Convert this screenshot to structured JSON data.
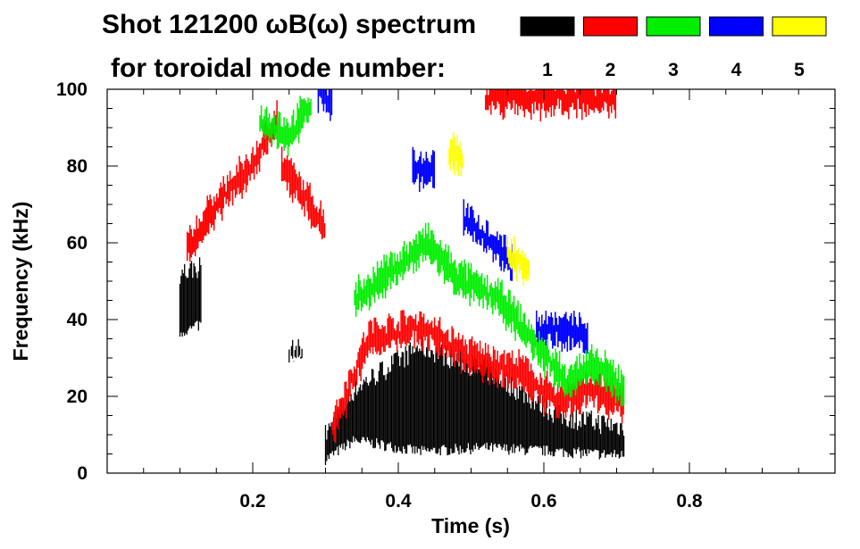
{
  "chart_data": {
    "type": "heatmap",
    "title": "Shot 121200 ωB(ω) spectrum",
    "subtitle": "for toroidal mode number:",
    "xlabel": "Time (s)",
    "ylabel": "Frequency (kHz)",
    "xlim": [
      0.0,
      1.0
    ],
    "ylim": [
      0,
      100
    ],
    "x_ticks": [
      "0.2",
      "0.4",
      "0.6",
      "0.8"
    ],
    "x_tick_values": [
      0.2,
      0.4,
      0.6,
      0.8
    ],
    "y_ticks": [
      "0",
      "20",
      "40",
      "60",
      "80",
      "100"
    ],
    "y_tick_values": [
      0,
      20,
      40,
      60,
      80,
      100
    ],
    "legend": [
      {
        "label": "1",
        "color": "#000000"
      },
      {
        "label": "2",
        "color": "#ff0000"
      },
      {
        "label": "3",
        "color": "#00ee00"
      },
      {
        "label": "4",
        "color": "#0000ff"
      },
      {
        "label": "5",
        "color": "#ffff00"
      }
    ],
    "series": [
      {
        "name": "n=1",
        "color": "#000000",
        "bands": [
          {
            "t": [
              0.3,
              0.71
            ],
            "f_low": [
              3,
              8,
              5,
              6,
              5,
              4
            ],
            "f_high": [
              10,
              22,
              33,
              27,
              15,
              12
            ],
            "t_nodes": [
              0.3,
              0.34,
              0.43,
              0.52,
              0.62,
              0.71
            ]
          },
          {
            "t": [
              0.1,
              0.13
            ],
            "f_low": [
              36,
              38
            ],
            "f_high": [
              52,
              54
            ],
            "t_nodes": [
              0.1,
              0.13
            ]
          },
          {
            "t": [
              0.25,
              0.27
            ],
            "f_low": [
              29,
              29
            ],
            "f_high": [
              32,
              32
            ],
            "t_nodes": [
              0.25,
              0.27
            ]
          }
        ]
      },
      {
        "name": "n=2",
        "color": "#ff0000",
        "traces": [
          {
            "t": [
              0.11,
              0.15,
              0.2,
              0.235
            ],
            "f": [
              58,
              70,
              80,
              93
            ]
          },
          {
            "t": [
              0.24,
              0.27,
              0.3
            ],
            "f": [
              80,
              72,
              64
            ]
          },
          {
            "t": [
              0.31,
              0.36,
              0.43,
              0.5,
              0.57,
              0.62,
              0.66,
              0.71
            ],
            "f": [
              12,
              35,
              38,
              30,
              26,
              18,
              22,
              18
            ]
          },
          {
            "t": [
              0.52,
              0.7
            ],
            "f": [
              98,
              98
            ]
          }
        ]
      },
      {
        "name": "n=3",
        "color": "#00ee00",
        "traces": [
          {
            "t": [
              0.21,
              0.25,
              0.28
            ],
            "f": [
              92,
              88,
              96
            ]
          },
          {
            "t": [
              0.34,
              0.4,
              0.44,
              0.48,
              0.54,
              0.6,
              0.63,
              0.67,
              0.71
            ],
            "f": [
              45,
              54,
              60,
              51,
              45,
              31,
              24,
              28,
              22
            ]
          }
        ]
      },
      {
        "name": "n=4",
        "color": "#0000ff",
        "traces": [
          {
            "t": [
              0.29,
              0.31
            ],
            "f": [
              99,
              97
            ]
          },
          {
            "t": [
              0.42,
              0.45
            ],
            "f": [
              79,
              79
            ]
          },
          {
            "t": [
              0.49,
              0.53,
              0.56
            ],
            "f": [
              66,
              60,
              54
            ]
          },
          {
            "t": [
              0.59,
              0.66
            ],
            "f": [
              38,
              36
            ]
          }
        ]
      },
      {
        "name": "n=5",
        "color": "#ffff00",
        "traces": [
          {
            "t": [
              0.47,
              0.49
            ],
            "f": [
              83,
              82
            ]
          },
          {
            "t": [
              0.55,
              0.58
            ],
            "f": [
              58,
              52
            ]
          }
        ]
      }
    ]
  }
}
